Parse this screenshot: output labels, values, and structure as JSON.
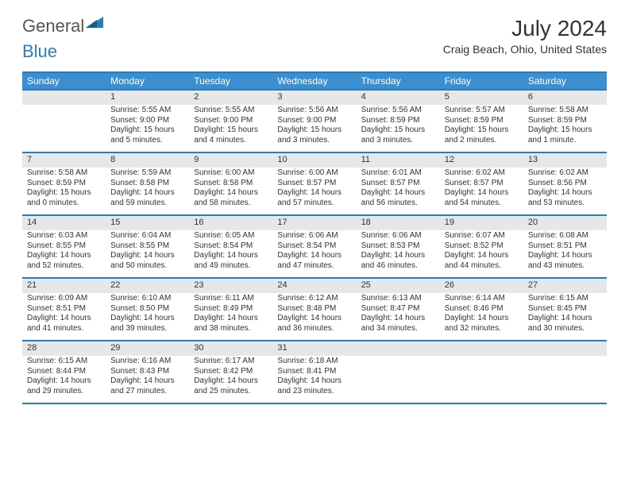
{
  "logo": {
    "text1": "General",
    "text2": "Blue"
  },
  "title": "July 2024",
  "subtitle": "Craig Beach, Ohio, United States",
  "colors": {
    "accent": "#2a7dbd",
    "header_bg": "#3b8fd0",
    "daynum_bg": "#e7e7e7",
    "text": "#333333",
    "white": "#ffffff"
  },
  "days_of_week": [
    "Sunday",
    "Monday",
    "Tuesday",
    "Wednesday",
    "Thursday",
    "Friday",
    "Saturday"
  ],
  "weeks": [
    [
      null,
      {
        "n": "1",
        "sr": "Sunrise: 5:55 AM",
        "ss": "Sunset: 9:00 PM",
        "dl": "Daylight: 15 hours and 5 minutes."
      },
      {
        "n": "2",
        "sr": "Sunrise: 5:55 AM",
        "ss": "Sunset: 9:00 PM",
        "dl": "Daylight: 15 hours and 4 minutes."
      },
      {
        "n": "3",
        "sr": "Sunrise: 5:56 AM",
        "ss": "Sunset: 9:00 PM",
        "dl": "Daylight: 15 hours and 3 minutes."
      },
      {
        "n": "4",
        "sr": "Sunrise: 5:56 AM",
        "ss": "Sunset: 8:59 PM",
        "dl": "Daylight: 15 hours and 3 minutes."
      },
      {
        "n": "5",
        "sr": "Sunrise: 5:57 AM",
        "ss": "Sunset: 8:59 PM",
        "dl": "Daylight: 15 hours and 2 minutes."
      },
      {
        "n": "6",
        "sr": "Sunrise: 5:58 AM",
        "ss": "Sunset: 8:59 PM",
        "dl": "Daylight: 15 hours and 1 minute."
      }
    ],
    [
      {
        "n": "7",
        "sr": "Sunrise: 5:58 AM",
        "ss": "Sunset: 8:59 PM",
        "dl": "Daylight: 15 hours and 0 minutes."
      },
      {
        "n": "8",
        "sr": "Sunrise: 5:59 AM",
        "ss": "Sunset: 8:58 PM",
        "dl": "Daylight: 14 hours and 59 minutes."
      },
      {
        "n": "9",
        "sr": "Sunrise: 6:00 AM",
        "ss": "Sunset: 8:58 PM",
        "dl": "Daylight: 14 hours and 58 minutes."
      },
      {
        "n": "10",
        "sr": "Sunrise: 6:00 AM",
        "ss": "Sunset: 8:57 PM",
        "dl": "Daylight: 14 hours and 57 minutes."
      },
      {
        "n": "11",
        "sr": "Sunrise: 6:01 AM",
        "ss": "Sunset: 8:57 PM",
        "dl": "Daylight: 14 hours and 56 minutes."
      },
      {
        "n": "12",
        "sr": "Sunrise: 6:02 AM",
        "ss": "Sunset: 8:57 PM",
        "dl": "Daylight: 14 hours and 54 minutes."
      },
      {
        "n": "13",
        "sr": "Sunrise: 6:02 AM",
        "ss": "Sunset: 8:56 PM",
        "dl": "Daylight: 14 hours and 53 minutes."
      }
    ],
    [
      {
        "n": "14",
        "sr": "Sunrise: 6:03 AM",
        "ss": "Sunset: 8:55 PM",
        "dl": "Daylight: 14 hours and 52 minutes."
      },
      {
        "n": "15",
        "sr": "Sunrise: 6:04 AM",
        "ss": "Sunset: 8:55 PM",
        "dl": "Daylight: 14 hours and 50 minutes."
      },
      {
        "n": "16",
        "sr": "Sunrise: 6:05 AM",
        "ss": "Sunset: 8:54 PM",
        "dl": "Daylight: 14 hours and 49 minutes."
      },
      {
        "n": "17",
        "sr": "Sunrise: 6:06 AM",
        "ss": "Sunset: 8:54 PM",
        "dl": "Daylight: 14 hours and 47 minutes."
      },
      {
        "n": "18",
        "sr": "Sunrise: 6:06 AM",
        "ss": "Sunset: 8:53 PM",
        "dl": "Daylight: 14 hours and 46 minutes."
      },
      {
        "n": "19",
        "sr": "Sunrise: 6:07 AM",
        "ss": "Sunset: 8:52 PM",
        "dl": "Daylight: 14 hours and 44 minutes."
      },
      {
        "n": "20",
        "sr": "Sunrise: 6:08 AM",
        "ss": "Sunset: 8:51 PM",
        "dl": "Daylight: 14 hours and 43 minutes."
      }
    ],
    [
      {
        "n": "21",
        "sr": "Sunrise: 6:09 AM",
        "ss": "Sunset: 8:51 PM",
        "dl": "Daylight: 14 hours and 41 minutes."
      },
      {
        "n": "22",
        "sr": "Sunrise: 6:10 AM",
        "ss": "Sunset: 8:50 PM",
        "dl": "Daylight: 14 hours and 39 minutes."
      },
      {
        "n": "23",
        "sr": "Sunrise: 6:11 AM",
        "ss": "Sunset: 8:49 PM",
        "dl": "Daylight: 14 hours and 38 minutes."
      },
      {
        "n": "24",
        "sr": "Sunrise: 6:12 AM",
        "ss": "Sunset: 8:48 PM",
        "dl": "Daylight: 14 hours and 36 minutes."
      },
      {
        "n": "25",
        "sr": "Sunrise: 6:13 AM",
        "ss": "Sunset: 8:47 PM",
        "dl": "Daylight: 14 hours and 34 minutes."
      },
      {
        "n": "26",
        "sr": "Sunrise: 6:14 AM",
        "ss": "Sunset: 8:46 PM",
        "dl": "Daylight: 14 hours and 32 minutes."
      },
      {
        "n": "27",
        "sr": "Sunrise: 6:15 AM",
        "ss": "Sunset: 8:45 PM",
        "dl": "Daylight: 14 hours and 30 minutes."
      }
    ],
    [
      {
        "n": "28",
        "sr": "Sunrise: 6:15 AM",
        "ss": "Sunset: 8:44 PM",
        "dl": "Daylight: 14 hours and 29 minutes."
      },
      {
        "n": "29",
        "sr": "Sunrise: 6:16 AM",
        "ss": "Sunset: 8:43 PM",
        "dl": "Daylight: 14 hours and 27 minutes."
      },
      {
        "n": "30",
        "sr": "Sunrise: 6:17 AM",
        "ss": "Sunset: 8:42 PM",
        "dl": "Daylight: 14 hours and 25 minutes."
      },
      {
        "n": "31",
        "sr": "Sunrise: 6:18 AM",
        "ss": "Sunset: 8:41 PM",
        "dl": "Daylight: 14 hours and 23 minutes."
      },
      null,
      null,
      null
    ]
  ]
}
